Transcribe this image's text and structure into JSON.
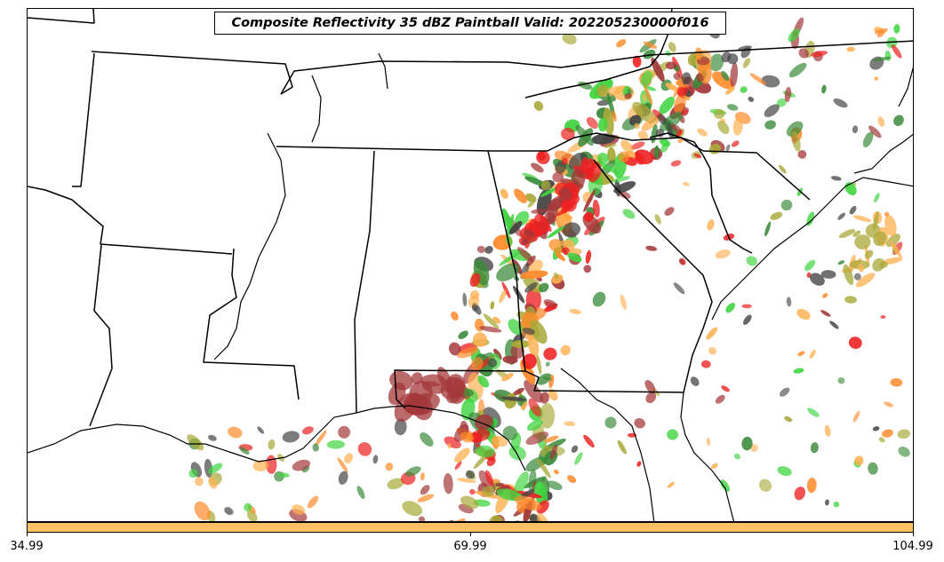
{
  "title": "Composite Reflectivity 35 dBZ Paintball Valid: 202205230000f016",
  "colorbar": {
    "color": "#ffc165",
    "ticks": [
      "34.99",
      "69.99",
      "104.99"
    ]
  },
  "colors": {
    "dark_red": "#a3383a",
    "red": "#ee2020",
    "orange": "#ff8a2a",
    "light_orange": "#ffb050",
    "green": "#3fd43f",
    "dark_green": "#3a8a3a",
    "olive": "#a8a838",
    "gray": "#444444",
    "boundary": "#000000"
  }
}
